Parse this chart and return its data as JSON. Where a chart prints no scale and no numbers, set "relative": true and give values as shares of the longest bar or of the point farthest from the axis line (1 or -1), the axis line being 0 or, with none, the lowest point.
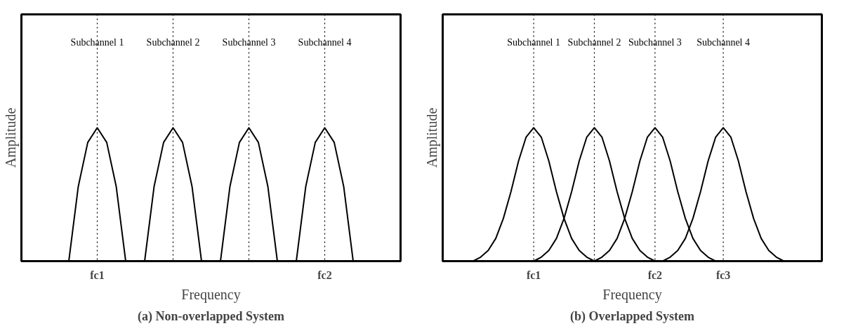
{
  "chart_data": [
    {
      "type": "line",
      "title": "(a) Non-overlapped System",
      "xlabel": "Frequency",
      "ylabel": "Amplitude",
      "relative": true,
      "grid": "x",
      "marker": "none",
      "line_style": "solid",
      "categories": [
        null,
        null,
        null,
        null,
        null,
        null,
        "fc1",
        null,
        null,
        null,
        null,
        null,
        null,
        null,
        null,
        null,
        null,
        null,
        null,
        null,
        null,
        null,
        null,
        null,
        null,
        null,
        null,
        null,
        null,
        null,
        "fc2",
        null,
        null,
        null,
        null,
        null,
        null
      ],
      "series": [
        {
          "color": "#000000",
          "values": [
            null,
            null,
            null,
            0,
            0.56,
            0.89,
            1,
            0.89,
            0.56,
            0,
            null,
            null,
            null,
            null,
            null,
            null,
            null,
            null,
            null,
            null,
            null,
            null,
            null,
            null,
            null,
            null,
            null,
            null,
            null,
            null,
            null,
            null,
            null,
            null,
            null,
            null,
            null
          ]
        },
        {
          "color": "#000000",
          "values": [
            null,
            null,
            null,
            null,
            null,
            null,
            null,
            null,
            null,
            null,
            null,
            0,
            0.56,
            0.89,
            1,
            0.89,
            0.56,
            0,
            null,
            null,
            null,
            null,
            null,
            null,
            null,
            null,
            null,
            null,
            null,
            null,
            null,
            null,
            null,
            null,
            null,
            null,
            null
          ]
        },
        {
          "color": "#000000",
          "values": [
            null,
            null,
            null,
            null,
            null,
            null,
            null,
            null,
            null,
            null,
            null,
            null,
            null,
            null,
            null,
            null,
            null,
            null,
            null,
            0,
            0.56,
            0.89,
            1,
            0.89,
            0.56,
            0,
            null,
            null,
            null,
            null,
            null,
            null,
            null,
            null,
            null,
            null,
            null
          ]
        },
        {
          "color": "#000000",
          "values": [
            null,
            null,
            null,
            null,
            null,
            null,
            null,
            null,
            null,
            null,
            null,
            null,
            null,
            null,
            null,
            null,
            null,
            null,
            null,
            null,
            null,
            null,
            null,
            null,
            null,
            null,
            null,
            0,
            0.56,
            0.89,
            1,
            0.89,
            0.56,
            0,
            null,
            null,
            null
          ]
        }
      ],
      "annotations": [
        "Subchannel 1",
        "Subchannel 2",
        "Subchannel 3",
        "Subchannel 4"
      ]
    },
    {
      "type": "line",
      "title": "(b) Overlapped System",
      "xlabel": "Frequency",
      "ylabel": "Amplitude",
      "relative": true,
      "grid": "x",
      "marker": "none",
      "line_style": "solid",
      "categories": [
        null,
        null,
        null,
        null,
        null,
        null,
        null,
        null,
        null,
        null,
        "fc1",
        null,
        null,
        null,
        null,
        null,
        null,
        null,
        null,
        null,
        null,
        null,
        null,
        null,
        null,
        null,
        "fc2",
        null,
        null,
        null,
        null,
        null,
        null,
        null,
        null,
        "fc3",
        null,
        null,
        null,
        null,
        null,
        null,
        null,
        null,
        null,
        null,
        null
      ],
      "series": [
        {
          "color": "#000000",
          "values": [
            null,
            null,
            0,
            0.03,
            0.08,
            0.17,
            0.32,
            0.52,
            0.75,
            0.93,
            1,
            0.93,
            0.75,
            0.52,
            0.32,
            0.17,
            0.08,
            0.03,
            0,
            null,
            null,
            null,
            null,
            null,
            null,
            null,
            null,
            null,
            null,
            null,
            null,
            null,
            null,
            null,
            null,
            null,
            null,
            null,
            null,
            null,
            null,
            null,
            null,
            null,
            null,
            null,
            null
          ]
        },
        {
          "color": "#000000",
          "values": [
            null,
            null,
            null,
            null,
            null,
            null,
            null,
            null,
            null,
            null,
            0,
            0.03,
            0.08,
            0.17,
            0.32,
            0.52,
            0.75,
            0.93,
            1,
            0.93,
            0.75,
            0.52,
            0.32,
            0.17,
            0.08,
            0.03,
            0,
            null,
            null,
            null,
            null,
            null,
            null,
            null,
            null,
            null,
            null,
            null,
            null,
            null,
            null,
            null,
            null,
            null,
            null,
            null,
            null
          ]
        },
        {
          "color": "#000000",
          "values": [
            null,
            null,
            null,
            null,
            null,
            null,
            null,
            null,
            null,
            null,
            null,
            null,
            null,
            null,
            null,
            null,
            null,
            null,
            0,
            0.03,
            0.08,
            0.17,
            0.32,
            0.52,
            0.75,
            0.93,
            1,
            0.93,
            0.75,
            0.52,
            0.32,
            0.17,
            0.08,
            0.03,
            0,
            null,
            null,
            null,
            null,
            null,
            null,
            null,
            null,
            null,
            null,
            null,
            null
          ]
        },
        {
          "color": "#000000",
          "values": [
            null,
            null,
            null,
            null,
            null,
            null,
            null,
            null,
            null,
            null,
            null,
            null,
            null,
            null,
            null,
            null,
            null,
            null,
            null,
            null,
            null,
            null,
            null,
            null,
            null,
            null,
            null,
            0,
            0.03,
            0.08,
            0.17,
            0.32,
            0.52,
            0.75,
            0.93,
            1,
            0.93,
            0.75,
            0.52,
            0.32,
            0.17,
            0.08,
            0.03,
            0,
            null,
            null,
            null
          ]
        }
      ],
      "annotations": [
        "Subchannel 1",
        "Subchannel 2",
        "Subchannel 3",
        "Subchannel 4"
      ]
    }
  ]
}
